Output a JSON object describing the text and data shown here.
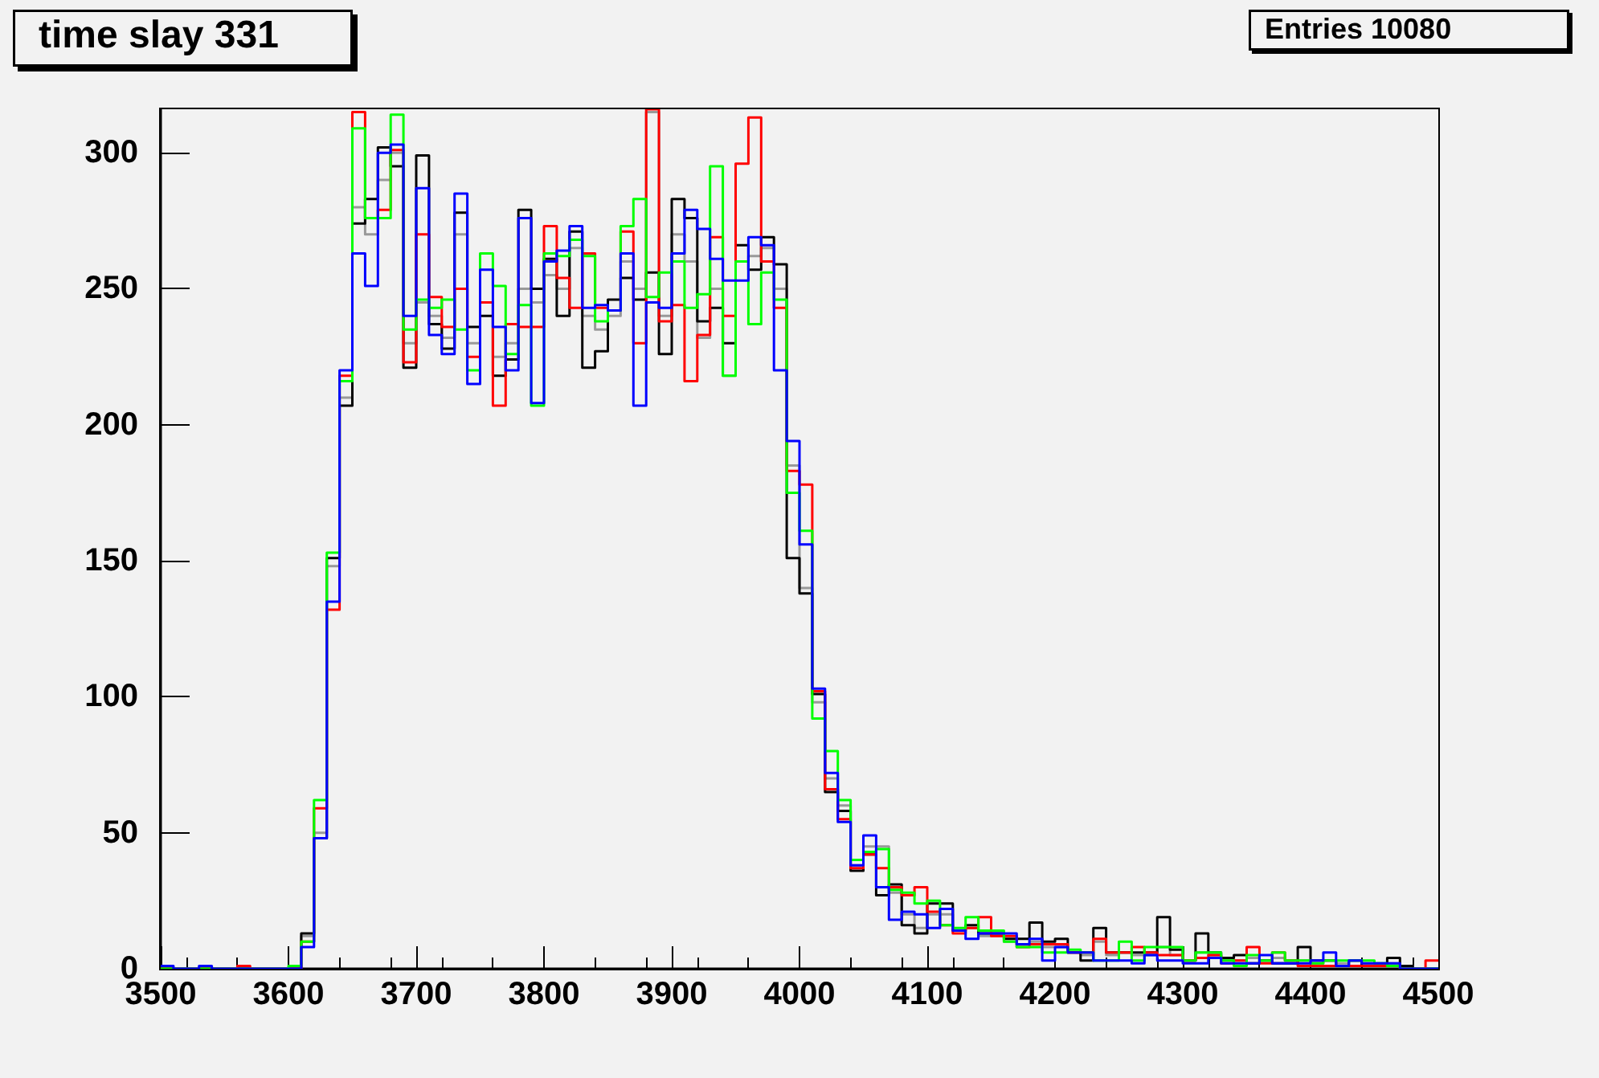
{
  "chart_data": {
    "type": "histogram",
    "title": "time slay 331",
    "annotations": [
      "Entries 10080"
    ],
    "bins": [
      3500,
      3510,
      3520,
      3530,
      3540,
      3550,
      3560,
      3570,
      3580,
      3590,
      3600,
      3610,
      3620,
      3630,
      3640,
      3650,
      3660,
      3670,
      3680,
      3690,
      3700,
      3710,
      3720,
      3730,
      3740,
      3750,
      3760,
      3770,
      3780,
      3790,
      3800,
      3810,
      3820,
      3830,
      3840,
      3850,
      3860,
      3870,
      3880,
      3890,
      3900,
      3910,
      3920,
      3930,
      3940,
      3950,
      3960,
      3970,
      3980,
      3990,
      4000,
      4010,
      4020,
      4030,
      4040,
      4050,
      4060,
      4070,
      4080,
      4090,
      4100,
      4110,
      4120,
      4130,
      4140,
      4150,
      4160,
      4170,
      4180,
      4190,
      4200,
      4210,
      4220,
      4230,
      4240,
      4250,
      4260,
      4270,
      4280,
      4290,
      4300,
      4310,
      4320,
      4330,
      4340,
      4350,
      4360,
      4370,
      4380,
      4390,
      4400,
      4410,
      4420,
      4430,
      4440,
      4450,
      4460,
      4470,
      4480,
      4490,
      4500
    ],
    "series": [
      {
        "color": "#999999",
        "values": [
          0,
          0,
          0,
          0,
          0,
          0,
          0,
          0,
          0,
          0,
          0,
          12,
          50,
          148,
          210,
          280,
          270,
          290,
          300,
          230,
          245,
          240,
          232,
          270,
          230,
          245,
          225,
          230,
          250,
          245,
          255,
          250,
          265,
          240,
          235,
          240,
          260,
          250,
          315,
          240,
          270,
          260,
          232,
          250,
          218,
          260,
          262,
          265,
          250,
          185,
          140,
          98,
          70,
          60,
          38,
          45,
          45,
          28,
          20,
          15,
          20,
          20,
          14,
          15,
          12,
          12,
          10,
          9,
          10,
          8,
          8,
          6,
          5,
          10,
          5,
          6,
          5,
          5,
          8,
          5,
          3,
          6,
          5,
          3,
          3,
          4,
          3,
          4,
          3,
          3,
          2,
          3,
          2,
          3,
          2,
          2,
          2,
          1,
          0,
          0
        ]
      },
      {
        "color": "#000000",
        "values": [
          0,
          0,
          0,
          0,
          0,
          0,
          0,
          0,
          0,
          0,
          0,
          13,
          48,
          151,
          207,
          274,
          283,
          302,
          295,
          221,
          299,
          237,
          228,
          278,
          236,
          240,
          218,
          224,
          279,
          250,
          261,
          240,
          271,
          221,
          227,
          246,
          254,
          246,
          256,
          226,
          283,
          276,
          238,
          243,
          230,
          266,
          257,
          269,
          259,
          151,
          138,
          101,
          65,
          58,
          36,
          42,
          27,
          31,
          16,
          13,
          24,
          24,
          14,
          16,
          13,
          13,
          11,
          11,
          17,
          10,
          11,
          6,
          3,
          15,
          6,
          6,
          6,
          6,
          19,
          7,
          3,
          13,
          6,
          4,
          5,
          2,
          3,
          2,
          2,
          8,
          3,
          3,
          1,
          3,
          1,
          1,
          4,
          1,
          0,
          0
        ]
      },
      {
        "color": "#ff0000",
        "values": [
          0,
          0,
          0,
          0,
          0,
          0,
          1,
          0,
          0,
          0,
          0,
          10,
          59,
          132,
          218,
          315,
          276,
          279,
          301,
          223,
          270,
          247,
          236,
          250,
          225,
          245,
          207,
          237,
          236,
          236,
          273,
          254,
          243,
          263,
          243,
          242,
          271,
          230,
          316,
          238,
          244,
          216,
          233,
          269,
          240,
          296,
          313,
          260,
          243,
          183,
          178,
          102,
          66,
          55,
          37,
          42,
          37,
          30,
          27,
          30,
          21,
          16,
          13,
          15,
          19,
          12,
          12,
          8,
          9,
          9,
          9,
          6,
          6,
          11,
          6,
          6,
          8,
          6,
          5,
          5,
          3,
          4,
          5,
          2,
          3,
          8,
          2,
          6,
          3,
          1,
          1,
          1,
          1,
          1,
          1,
          1,
          1,
          0,
          0,
          3
        ]
      },
      {
        "color": "#00ff00",
        "values": [
          0,
          0,
          0,
          0,
          0,
          0,
          0,
          0,
          0,
          0,
          1,
          10,
          62,
          153,
          216,
          309,
          276,
          276,
          314,
          235,
          246,
          243,
          246,
          235,
          220,
          263,
          251,
          226,
          244,
          207,
          263,
          262,
          268,
          262,
          238,
          242,
          273,
          283,
          247,
          256,
          260,
          243,
          248,
          295,
          218,
          260,
          237,
          256,
          246,
          175,
          161,
          92,
          80,
          62,
          40,
          43,
          44,
          29,
          28,
          24,
          25,
          16,
          15,
          19,
          14,
          14,
          10,
          8,
          8,
          6,
          6,
          7,
          6,
          3,
          3,
          10,
          3,
          8,
          8,
          8,
          3,
          6,
          6,
          3,
          1,
          5,
          3,
          6,
          3,
          3,
          2,
          3,
          3,
          3,
          3,
          2,
          1,
          0,
          0,
          0
        ]
      },
      {
        "color": "#0000ff",
        "values": [
          1,
          0,
          0,
          1,
          0,
          0,
          0,
          0,
          0,
          0,
          0,
          8,
          48,
          135,
          220,
          263,
          251,
          300,
          303,
          240,
          287,
          233,
          226,
          285,
          215,
          257,
          236,
          220,
          276,
          208,
          260,
          264,
          273,
          243,
          244,
          242,
          263,
          207,
          245,
          243,
          263,
          279,
          272,
          261,
          253,
          253,
          269,
          266,
          220,
          194,
          156,
          103,
          72,
          54,
          38,
          49,
          30,
          18,
          21,
          20,
          15,
          22,
          14,
          11,
          13,
          13,
          13,
          9,
          11,
          3,
          8,
          6,
          6,
          3,
          3,
          3,
          2,
          5,
          3,
          3,
          2,
          2,
          4,
          2,
          2,
          2,
          5,
          2,
          2,
          2,
          3,
          6,
          1,
          3,
          2,
          2,
          2,
          0,
          0,
          0
        ]
      }
    ],
    "xlim": [
      3500,
      4500
    ],
    "xticks": [
      3500,
      3600,
      3700,
      3800,
      3900,
      4000,
      4100,
      4200,
      4300,
      4400,
      4500
    ],
    "ylim": [
      0,
      316
    ],
    "yticks": [
      0,
      50,
      100,
      150,
      200,
      250,
      300
    ]
  }
}
